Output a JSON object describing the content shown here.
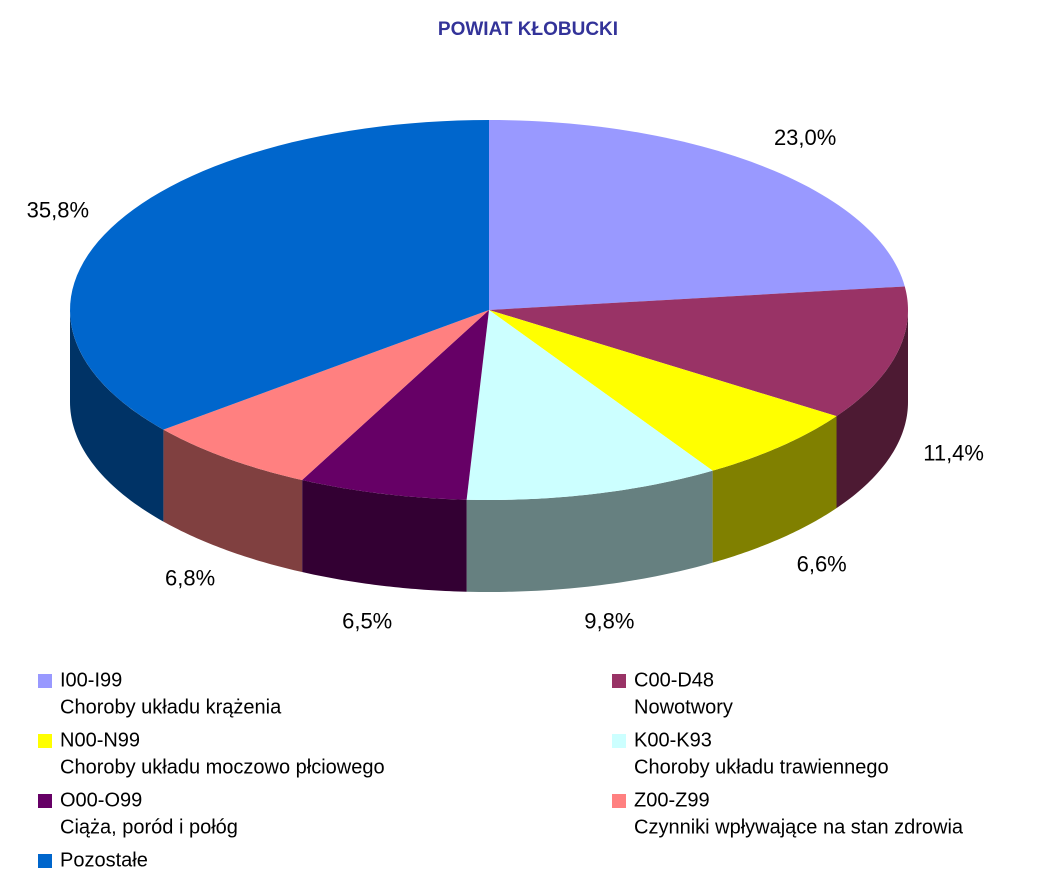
{
  "chart_data": {
    "type": "pie",
    "title": "POWIAT KŁOBUCKI",
    "categories": [
      "I00-I99",
      "C00-D48",
      "N00-N99",
      "K00-K93",
      "O00-O99",
      "Z00-Z99",
      "Pozostałe"
    ],
    "descriptions": [
      "Choroby układu krążenia",
      "Nowotwory",
      "Choroby układu moczowo płciowego",
      "Choroby układu trawiennego",
      "Ciąża, poród i połóg",
      "Czynniki wpływające na stan zdrowia",
      null
    ],
    "values": [
      23.0,
      11.4,
      6.6,
      9.8,
      6.5,
      6.8,
      35.8
    ],
    "value_labels": [
      "23,0%",
      "11,4%",
      "6,6%",
      "9,8%",
      "6,5%",
      "6,8%",
      "35,8%"
    ],
    "colors": [
      "#9999ff",
      "#993366",
      "#ffff00",
      "#ccffff",
      "#660066",
      "#ff8080",
      "#0066cc"
    ]
  }
}
